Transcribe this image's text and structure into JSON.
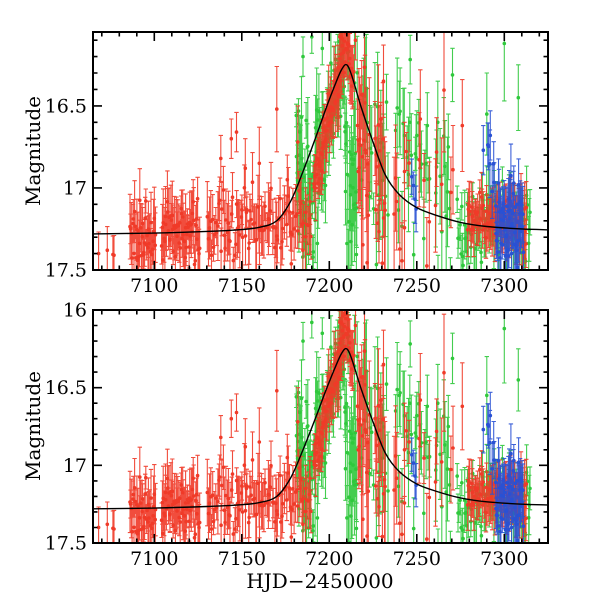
{
  "figure": {
    "background": "#ffffff",
    "frame_color": "#000000"
  },
  "chart_data": {
    "type": "scatter",
    "title": "",
    "xlabel": "HJD−2450000",
    "ylabel": "Magnitude",
    "xlim": [
      7065,
      7325
    ],
    "x_ticks": [
      7100,
      7150,
      7200,
      7250,
      7300
    ],
    "x_tick_labels": [
      "7100",
      "7150",
      "7200",
      "7250",
      "7300"
    ],
    "x_minor_step": 10,
    "y_major_step": 0.5,
    "y_minor_step": 0.1,
    "legend": "none",
    "grid": false,
    "panels": [
      {
        "name": "top",
        "mag_top": 16.05,
        "mag_bottom": 17.5,
        "y_ticks": [
          16.5,
          17.0,
          17.5
        ],
        "y_tick_labels": [
          "16.5",
          "17",
          "17.5"
        ]
      },
      {
        "name": "bottom",
        "mag_top": 16.0,
        "mag_bottom": 17.5,
        "y_ticks": [
          16.0,
          16.5,
          17.0,
          17.5
        ],
        "y_tick_labels": [
          "16",
          "16.5",
          "17",
          "17.5"
        ]
      }
    ],
    "model_curve": {
      "color": "#000000",
      "baseline_mag": 17.27,
      "peak_time": 7210,
      "peak_mag": 16.25,
      "points": [
        [
          7065,
          17.28
        ],
        [
          7100,
          17.275
        ],
        [
          7130,
          17.265
        ],
        [
          7148,
          17.255
        ],
        [
          7160,
          17.24
        ],
        [
          7170,
          17.2
        ],
        [
          7178,
          17.08
        ],
        [
          7185,
          16.9
        ],
        [
          7192,
          16.7
        ],
        [
          7198,
          16.52
        ],
        [
          7203,
          16.38
        ],
        [
          7207,
          16.28
        ],
        [
          7210,
          16.25
        ],
        [
          7213,
          16.32
        ],
        [
          7218,
          16.5
        ],
        [
          7225,
          16.72
        ],
        [
          7232,
          16.92
        ],
        [
          7240,
          17.04
        ],
        [
          7250,
          17.12
        ],
        [
          7262,
          17.17
        ],
        [
          7275,
          17.21
        ],
        [
          7290,
          17.235
        ],
        [
          7310,
          17.25
        ],
        [
          7325,
          17.255
        ]
      ]
    },
    "series": [
      {
        "name": "green-band",
        "color": "#2fc83c",
        "seed": 13,
        "segments": [
          {
            "x": [
              7181,
              7193
            ],
            "n": 45,
            "mag": [
              17.05,
              16.95
            ],
            "spread": 0.24,
            "err": [
              0.06,
              0.3
            ]
          },
          {
            "x": [
              7193,
              7202
            ],
            "n": 32,
            "mag": [
              16.9,
              16.5
            ],
            "spread": 0.17,
            "err": [
              0.06,
              0.25
            ]
          },
          {
            "x": [
              7202,
              7209
            ],
            "n": 30,
            "mag": [
              16.45,
              16.3
            ],
            "spread": 0.14,
            "err": [
              0.05,
              0.22
            ]
          },
          {
            "x": [
              7209,
              7216
            ],
            "n": 30,
            "mag": [
              16.75,
              16.9
            ],
            "spread": 0.38,
            "err": [
              0.06,
              0.35
            ]
          },
          {
            "x": [
              7217,
              7234
            ],
            "n": 22,
            "mag": [
              16.7,
              16.95
            ],
            "spread": 0.33,
            "err": [
              0.08,
              0.4
            ]
          },
          {
            "x": [
              7237,
              7258
            ],
            "n": 22,
            "mag": [
              16.9,
              16.95
            ],
            "spread": 0.3,
            "err": [
              0.08,
              0.35
            ]
          },
          {
            "x": [
              7260,
              7271
            ],
            "n": 12,
            "mag": [
              17.0,
              17.05
            ],
            "spread": 0.3,
            "err": [
              0.08,
              0.35
            ]
          },
          {
            "x": [
              7273,
              7315
            ],
            "n": 85,
            "mag": [
              17.25,
              17.24
            ],
            "spread": 0.115,
            "err": [
              0.06,
              0.22
            ]
          }
        ],
        "outliers": [
          [
            7185,
            16.2,
            0.12
          ],
          [
            7190,
            16.08,
            0.1
          ],
          [
            7196,
            16.15,
            0.1
          ],
          [
            7240,
            16.55,
            0.2
          ],
          [
            7246,
            16.6,
            0.18
          ],
          [
            7250,
            16.68,
            0.15
          ],
          [
            7256,
            16.62,
            0.2
          ],
          [
            7262,
            16.6,
            0.25
          ],
          [
            7268,
            16.75,
            0.2
          ],
          [
            7290,
            16.55,
            0.25
          ],
          [
            7300,
            16.12,
            0.35
          ],
          [
            7308,
            16.45,
            0.2
          ]
        ]
      },
      {
        "name": "red-band",
        "color": "#f03a28",
        "seed": 7,
        "segments": [
          {
            "x": [
              7068,
              7079
            ],
            "n": 3,
            "mag": [
              17.38,
              17.42
            ],
            "spread": 0.04,
            "err": [
              0.1,
              0.16
            ]
          },
          {
            "x": [
              7086,
              7101
            ],
            "n": 40,
            "mag": [
              17.3,
              17.26
            ],
            "spread": 0.085,
            "err": [
              0.07,
              0.2
            ]
          },
          {
            "x": [
              7104,
              7126
            ],
            "n": 62,
            "mag": [
              17.27,
              17.24
            ],
            "spread": 0.095,
            "err": [
              0.07,
              0.22
            ]
          },
          {
            "x": [
              7130,
              7190
            ],
            "n": 100,
            "mag": [
              17.24,
              17.19
            ],
            "spread": 0.1,
            "err": [
              0.07,
              0.22
            ]
          },
          {
            "x": [
              7191,
              7204
            ],
            "n": 42,
            "mag": [
              16.98,
              16.42
            ],
            "spread": 0.08,
            "err": [
              0.06,
              0.22
            ]
          },
          {
            "x": [
              7204,
              7210
            ],
            "n": 35,
            "mag": [
              16.42,
              16.06
            ],
            "spread": 0.09,
            "err": [
              0.05,
              0.2
            ]
          },
          {
            "x": [
              7210,
              7214
            ],
            "n": 18,
            "mag": [
              16.08,
              16.4
            ],
            "spread": 0.1,
            "err": [
              0.05,
              0.22
            ]
          },
          {
            "x": [
              7216,
              7223
            ],
            "n": 20,
            "mag": [
              16.8,
              16.95
            ],
            "spread": 0.4,
            "err": [
              0.1,
              0.45
            ]
          },
          {
            "x": [
              7226,
              7232
            ],
            "n": 16,
            "mag": [
              17.05,
              17.1
            ],
            "spread": 0.33,
            "err": [
              0.1,
              0.42
            ]
          },
          {
            "x": [
              7236,
              7246
            ],
            "n": 8,
            "mag": [
              17.15,
              17.15
            ],
            "spread": 0.22,
            "err": [
              0.1,
              0.35
            ]
          },
          {
            "x": [
              7250,
              7272
            ],
            "n": 10,
            "mag": [
              17.05,
              17.1
            ],
            "spread": 0.28,
            "err": [
              0.12,
              0.4
            ]
          },
          {
            "x": [
              7279,
              7313
            ],
            "n": 80,
            "mag": [
              17.2,
              17.19
            ],
            "spread": 0.075,
            "err": [
              0.07,
              0.18
            ]
          }
        ],
        "outliers": [
          [
            7077,
            17.41,
            0.12
          ],
          [
            7138,
            16.82,
            0.14
          ],
          [
            7144,
            16.7,
            0.12
          ],
          [
            7147,
            16.66,
            0.12
          ],
          [
            7152,
            16.88,
            0.18
          ],
          [
            7160,
            16.85,
            0.22
          ],
          [
            7170,
            16.52,
            0.26
          ],
          [
            7176,
            16.95,
            0.15
          ],
          [
            7182,
            16.72,
            0.22
          ],
          [
            7215,
            16.1,
            0.12
          ],
          [
            7231,
            16.35,
            0.22
          ],
          [
            7243,
            16.9,
            0.3
          ],
          [
            7252,
            16.58,
            0.3
          ],
          [
            7276,
            16.62,
            0.28
          ]
        ]
      },
      {
        "name": "blue-band",
        "color": "#2951d4",
        "seed": 29,
        "segments": [
          {
            "x": [
              7247,
              7250
            ],
            "n": 4,
            "mag": [
              17.02,
              17.12
            ],
            "spread": 0.06,
            "err": [
              0.08,
              0.15
            ]
          },
          {
            "x": [
              7290,
              7295
            ],
            "n": 6,
            "mag": [
              16.85,
              17.02
            ],
            "spread": 0.12,
            "err": [
              0.1,
              0.22
            ]
          },
          {
            "x": [
              7295,
              7311
            ],
            "n": 60,
            "mag": [
              17.21,
              17.22
            ],
            "spread": 0.13,
            "err": [
              0.07,
              0.2
            ]
          }
        ],
        "outliers": [
          [
            7292,
            16.68,
            0.15
          ],
          [
            7288,
            16.77,
            0.15
          ]
        ]
      }
    ]
  }
}
